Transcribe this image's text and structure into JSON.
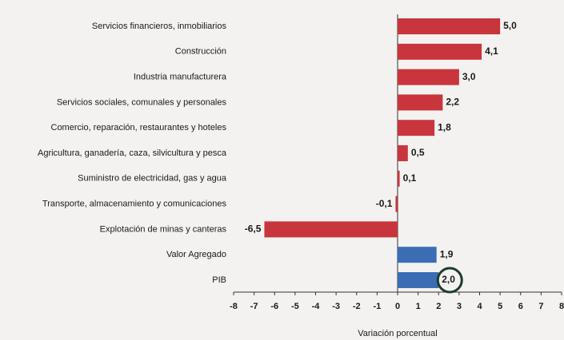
{
  "chart_data": {
    "type": "barh",
    "categories": [
      "Servicios financieros, inmobiliarios",
      "Construcción",
      "Industria manufacturera",
      "Servicios sociales, comunales y personales",
      "Comercio, reparación, restaurantes y hoteles",
      "Agricultura, ganadería, caza, silvicultura y pesca",
      "Suministro de electricidad, gas y agua",
      "Transporte, almacenamiento y comunicaciones",
      "Explotación de minas y canteras",
      "Valor Agregado",
      "PIB"
    ],
    "values": [
      5.0,
      4.1,
      3.0,
      2.2,
      1.8,
      0.5,
      0.1,
      -0.1,
      -6.5,
      1.9,
      2.0
    ],
    "value_labels": [
      "5,0",
      "4,1",
      "3,0",
      "2,2",
      "1,8",
      "0,5",
      "0,1",
      "-0,1",
      "-6,5",
      "1,9",
      "2,0"
    ],
    "colors": [
      "#c9353c",
      "#c9353c",
      "#c9353c",
      "#c9353c",
      "#c9353c",
      "#c9353c",
      "#c9353c",
      "#c9353c",
      "#c9353c",
      "#3b6db5",
      "#3b6db5"
    ],
    "xlim": [
      -8,
      8
    ],
    "xticks": [
      -8,
      -7,
      -6,
      -5,
      -4,
      -3,
      -2,
      -1,
      0,
      1,
      2,
      3,
      4,
      5,
      6,
      7,
      8
    ],
    "xlabel": "Variación porcentual"
  }
}
